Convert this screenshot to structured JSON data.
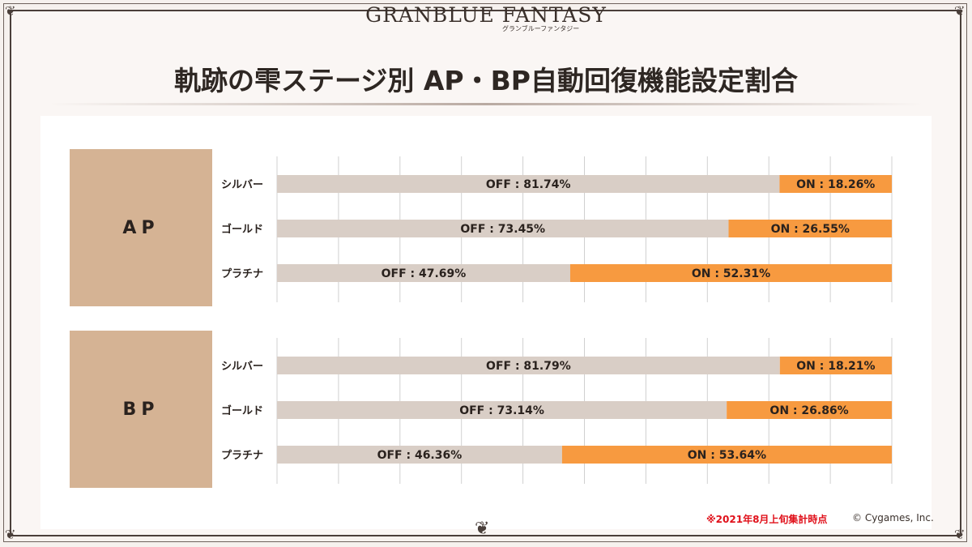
{
  "header": {
    "logo_text": "GRANBLUE FANTASY",
    "logo_sub": "グランブルーファンタジー",
    "title": "軌跡の雫ステージ別 AP・BP自動回復機能設定割合"
  },
  "colors": {
    "off": "#d9cec6",
    "on": "#f79a40",
    "label_box": "#d5b394",
    "gridline": "#d0d0d0"
  },
  "groups": [
    {
      "label": "AP",
      "category_names": [
        "シルバー",
        "ゴールド",
        "プラチナ"
      ]
    },
    {
      "label": "BP",
      "category_names": [
        "シルバー",
        "ゴールド",
        "プラチナ"
      ]
    }
  ],
  "chart_data": [
    {
      "type": "bar",
      "stacked": true,
      "orientation": "horizontal",
      "title": "AP",
      "categories": [
        "シルバー",
        "ゴールド",
        "プラチナ"
      ],
      "series": [
        {
          "name": "OFF",
          "values": [
            81.74,
            73.45,
            47.69
          ],
          "labels": [
            "OFF : 81.74%",
            "OFF : 73.45%",
            "OFF : 47.69%"
          ]
        },
        {
          "name": "ON",
          "values": [
            18.26,
            26.55,
            52.31
          ],
          "labels": [
            "ON : 18.26%",
            "ON : 26.55%",
            "ON : 52.31%"
          ]
        }
      ],
      "xlim": [
        0,
        100
      ],
      "grid": true
    },
    {
      "type": "bar",
      "stacked": true,
      "orientation": "horizontal",
      "title": "BP",
      "categories": [
        "シルバー",
        "ゴールド",
        "プラチナ"
      ],
      "series": [
        {
          "name": "OFF",
          "values": [
            81.79,
            73.14,
            46.36
          ],
          "labels": [
            "OFF : 81.79%",
            "OFF : 73.14%",
            "OFF : 46.36%"
          ]
        },
        {
          "name": "ON",
          "values": [
            18.21,
            26.86,
            53.64
          ],
          "labels": [
            "ON : 18.21%",
            "ON : 26.86%",
            "ON : 53.64%"
          ]
        }
      ],
      "xlim": [
        0,
        100
      ],
      "grid": true
    }
  ],
  "footer": {
    "note": "※2021年8月上旬集計時点",
    "copyright": "© Cygames, Inc."
  }
}
